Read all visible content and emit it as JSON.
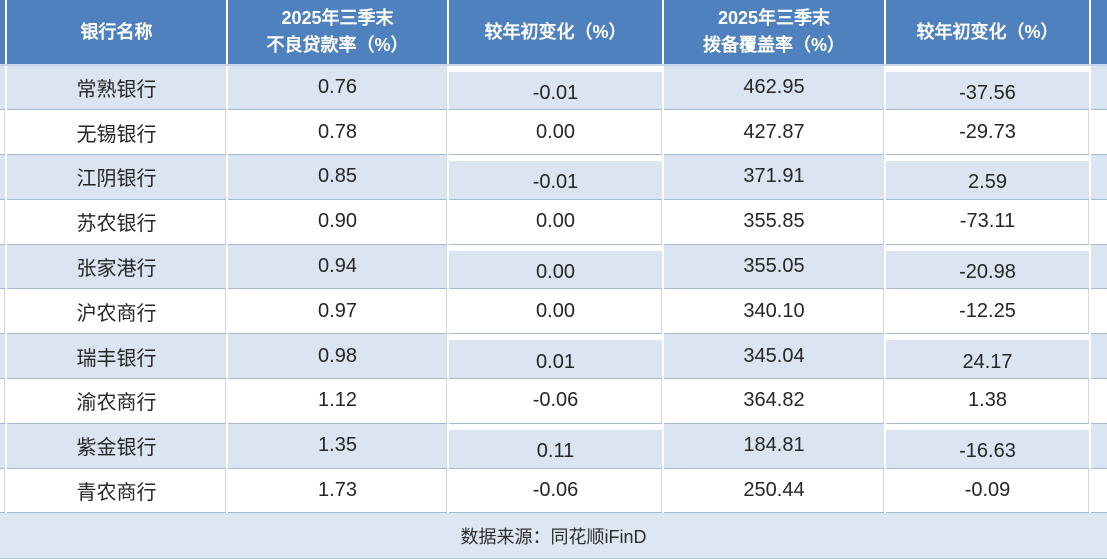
{
  "chart_data": {
    "type": "table",
    "title": "",
    "columns": [
      "银行名称",
      "2025年三季末不良贷款率（%）",
      "较年初变化（%）",
      "2025年三季末拨备覆盖率（%）",
      "较年初变化（%）"
    ],
    "rows": [
      [
        "常熟银行",
        0.76,
        -0.01,
        462.95,
        -37.56
      ],
      [
        "无锡银行",
        0.78,
        0.0,
        427.87,
        -29.73
      ],
      [
        "江阴银行",
        0.85,
        -0.01,
        371.91,
        2.59
      ],
      [
        "苏农银行",
        0.9,
        0.0,
        355.85,
        -73.11
      ],
      [
        "张家港行",
        0.94,
        0.0,
        355.05,
        -20.98
      ],
      [
        "沪农商行",
        0.97,
        0.0,
        340.1,
        -12.25
      ],
      [
        "瑞丰银行",
        0.98,
        0.01,
        345.04,
        24.17
      ],
      [
        "渝农商行",
        1.12,
        -0.06,
        364.82,
        1.38
      ],
      [
        "紫金银行",
        1.35,
        0.11,
        184.81,
        -16.63
      ],
      [
        "青农商行",
        1.73,
        -0.06,
        250.44,
        -0.09
      ]
    ],
    "source_note": "数据来源：同花顺iFinD",
    "layout_hints": {
      "striped_rows": true,
      "stripe_pattern": "odd-rows-light-blue",
      "header_style": "blue-bold-white"
    }
  },
  "table": {
    "headers": [
      {
        "line1": "银行名称"
      },
      {
        "line1": "2025年三季末",
        "line2": "不良贷款率（%）"
      },
      {
        "line1": "较年初变化（%）"
      },
      {
        "line1": "2025年三季末",
        "line2": "拨备覆盖率（%）"
      },
      {
        "line1": "较年初变化（%）"
      }
    ],
    "rows": [
      {
        "bank": "常熟银行",
        "npl": "0.76",
        "npl_chg": "-0.01",
        "coverage": "462.95",
        "coverage_chg": "-37.56"
      },
      {
        "bank": "无锡银行",
        "npl": "0.78",
        "npl_chg": "0.00",
        "coverage": "427.87",
        "coverage_chg": "-29.73"
      },
      {
        "bank": "江阴银行",
        "npl": "0.85",
        "npl_chg": "-0.01",
        "coverage": "371.91",
        "coverage_chg": "2.59"
      },
      {
        "bank": "苏农银行",
        "npl": "0.90",
        "npl_chg": "0.00",
        "coverage": "355.85",
        "coverage_chg": "-73.11"
      },
      {
        "bank": "张家港行",
        "npl": "0.94",
        "npl_chg": "0.00",
        "coverage": "355.05",
        "coverage_chg": "-20.98"
      },
      {
        "bank": "沪农商行",
        "npl": "0.97",
        "npl_chg": "0.00",
        "coverage": "340.10",
        "coverage_chg": "-12.25"
      },
      {
        "bank": "瑞丰银行",
        "npl": "0.98",
        "npl_chg": "0.01",
        "coverage": "345.04",
        "coverage_chg": "24.17"
      },
      {
        "bank": "渝农商行",
        "npl": "1.12",
        "npl_chg": "-0.06",
        "coverage": "364.82",
        "coverage_chg": "1.38"
      },
      {
        "bank": "紫金银行",
        "npl": "1.35",
        "npl_chg": "0.11",
        "coverage": "184.81",
        "coverage_chg": "-16.63"
      },
      {
        "bank": "青农商行",
        "npl": "1.73",
        "npl_chg": "-0.06",
        "coverage": "250.44",
        "coverage_chg": "-0.09"
      }
    ],
    "source_note": "数据来源：同花顺iFinD"
  },
  "colors": {
    "header_bg": "#4e81bd",
    "stripe_bg": "#dbe5f1",
    "footer_bg": "#dde7f2",
    "grid_line": "#a6bace",
    "header_rule": "#ccd8e8",
    "body_text": "#262626",
    "header_text": "#ffffff"
  }
}
